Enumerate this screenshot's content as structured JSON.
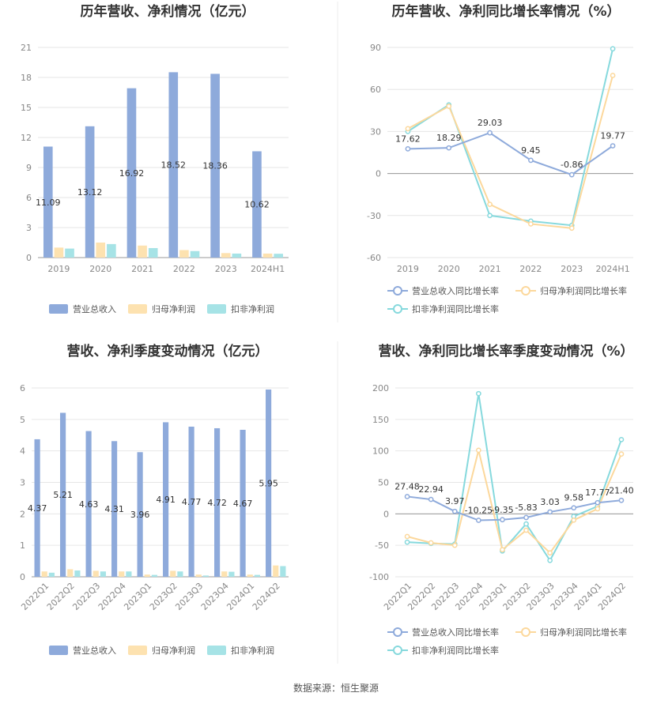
{
  "source": "数据来源：恒生聚源",
  "colors": {
    "revenue": "#8eaadb",
    "net": "#fde2b0",
    "deducted": "#a6e3e6",
    "revenue_line": "#8eaadb",
    "net_line": "#fcd89c",
    "deducted_line": "#86d9dd"
  },
  "chart_data": [
    {
      "type": "bar",
      "title": "历年营收、净利情况（亿元）",
      "categories": [
        "2019",
        "2020",
        "2021",
        "2022",
        "2023",
        "2024H1"
      ],
      "ylim": [
        0,
        21
      ],
      "yticks": [
        0,
        3,
        6,
        9,
        12,
        15,
        18,
        21
      ],
      "series": [
        {
          "name": "营业总收入",
          "values": [
            11.09,
            13.12,
            16.92,
            18.52,
            18.36,
            10.62
          ],
          "labels": [
            "11.09",
            "13.12",
            "16.92",
            "18.52",
            "18.36",
            "10.62"
          ]
        },
        {
          "name": "归母净利润",
          "values": [
            1.0,
            1.5,
            1.2,
            0.75,
            0.45,
            0.4
          ]
        },
        {
          "name": "扣非净利润",
          "values": [
            0.9,
            1.35,
            0.95,
            0.65,
            0.4,
            0.38
          ]
        }
      ],
      "legend_position": "bottom",
      "grid": true
    },
    {
      "type": "line",
      "title": "历年营收、净利同比增长率情况（%）",
      "categories": [
        "2019",
        "2020",
        "2021",
        "2022",
        "2023",
        "2024H1"
      ],
      "ylim": [
        -60,
        90
      ],
      "yticks": [
        -60,
        -30,
        0,
        30,
        60,
        90
      ],
      "series": [
        {
          "name": "营业总收入同比增长率",
          "values": [
            17.62,
            18.29,
            29.03,
            9.45,
            -0.86,
            19.77
          ],
          "labels": [
            "17.62",
            "18.29",
            "29.03",
            "9.45",
            "-0.86",
            "19.77"
          ]
        },
        {
          "name": "归母净利润同比增长率",
          "values": [
            32,
            48,
            -22,
            -36,
            -39,
            70
          ]
        },
        {
          "name": "扣非净利润同比增长率",
          "values": [
            30,
            49,
            -30,
            -34,
            -37,
            89
          ]
        }
      ],
      "legend_position": "bottom",
      "grid": true
    },
    {
      "type": "bar",
      "title": "营收、净利季度变动情况（亿元）",
      "categories": [
        "2022Q1",
        "2022Q2",
        "2022Q3",
        "2022Q4",
        "2023Q1",
        "2023Q2",
        "2023Q3",
        "2023Q4",
        "2024Q1",
        "2024Q2"
      ],
      "ylim": [
        0,
        6
      ],
      "yticks": [
        0,
        1,
        2,
        3,
        4,
        5,
        6
      ],
      "series": [
        {
          "name": "营业总收入",
          "values": [
            4.37,
            5.21,
            4.63,
            4.31,
            3.96,
            4.91,
            4.77,
            4.72,
            4.67,
            5.95
          ],
          "labels": [
            "4.37",
            "5.21",
            "4.63",
            "4.31",
            "3.96",
            "4.91",
            "4.77",
            "4.72",
            "4.67",
            "5.95"
          ]
        },
        {
          "name": "归母净利润",
          "values": [
            0.17,
            0.24,
            0.19,
            0.17,
            0.07,
            0.19,
            0.07,
            0.17,
            0.07,
            0.36
          ]
        },
        {
          "name": "扣非净利润",
          "values": [
            0.13,
            0.2,
            0.17,
            0.17,
            0.06,
            0.17,
            0.04,
            0.16,
            0.06,
            0.34
          ]
        }
      ],
      "legend_position": "bottom",
      "grid": true
    },
    {
      "type": "line",
      "title": "营收、净利同比增长率季度变动情况（%）",
      "categories": [
        "2022Q1",
        "2022Q2",
        "2022Q3",
        "2022Q4",
        "2023Q1",
        "2023Q2",
        "2023Q3",
        "2023Q4",
        "2024Q1",
        "2024Q2"
      ],
      "ylim": [
        -100,
        200
      ],
      "yticks": [
        -100,
        -50,
        0,
        50,
        100,
        150,
        200
      ],
      "series": [
        {
          "name": "营业总收入同比增长率",
          "values": [
            27.48,
            22.94,
            3.97,
            -10.25,
            -9.35,
            -5.83,
            3.03,
            9.58,
            17.77,
            21.4
          ],
          "labels": [
            "27.48",
            "22.94",
            "3.97",
            "-10.25",
            "-9.35",
            "-5.83",
            "3.03",
            "9.58",
            "17.77",
            "21.40"
          ]
        },
        {
          "name": "归母净利润同比增长率",
          "values": [
            -36,
            -46,
            -50,
            101,
            -57,
            -26,
            -62,
            -10,
            8,
            95
          ]
        },
        {
          "name": "扣非净利润同比增长率",
          "values": [
            -45,
            -47,
            -48,
            191,
            -59,
            -16,
            -74,
            -4,
            12,
            118
          ]
        }
      ],
      "legend_position": "bottom",
      "grid": true
    }
  ]
}
